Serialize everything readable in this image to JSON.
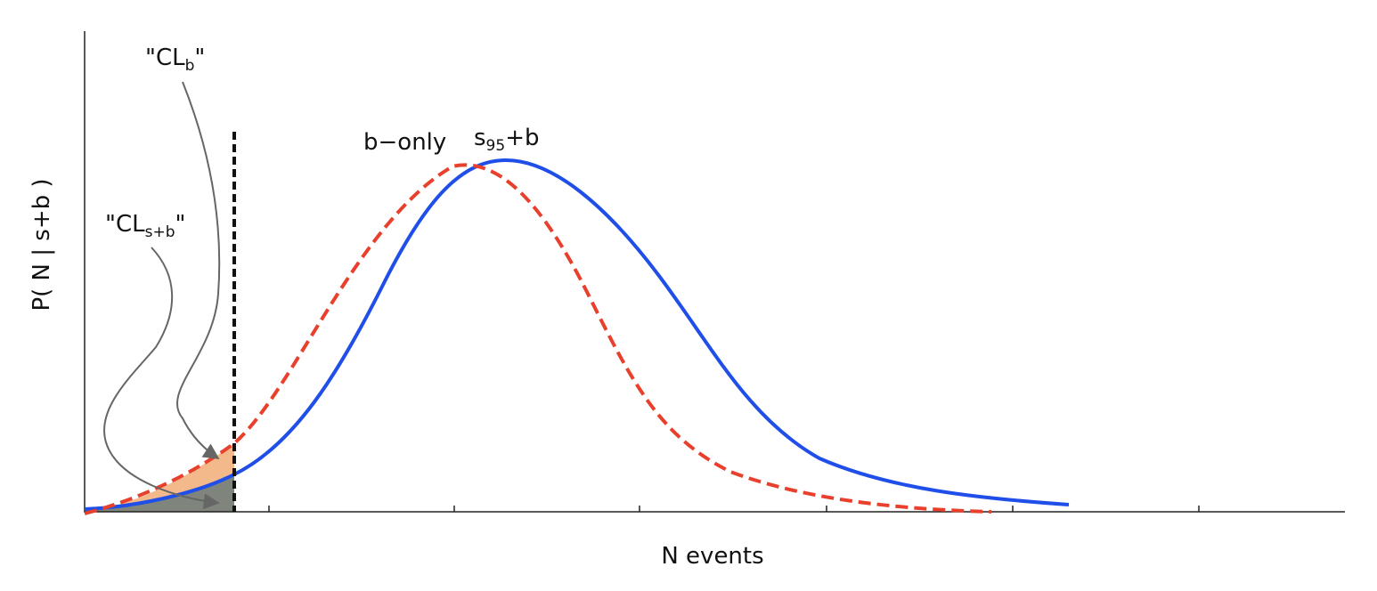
{
  "y_axis_label": "P( N | s+b )",
  "x_axis_label": "N events",
  "curve_labels": {
    "b_only": "b−only",
    "s95_b": {
      "main": "s",
      "sub": "95",
      "suffix": "+b"
    }
  },
  "annotations": {
    "cl_b": {
      "prefix": "\"CL",
      "sub": "b",
      "suffix": "\""
    },
    "cl_sb": {
      "prefix": "\"CL",
      "sub": "s+b",
      "suffix": "\""
    }
  }
}
